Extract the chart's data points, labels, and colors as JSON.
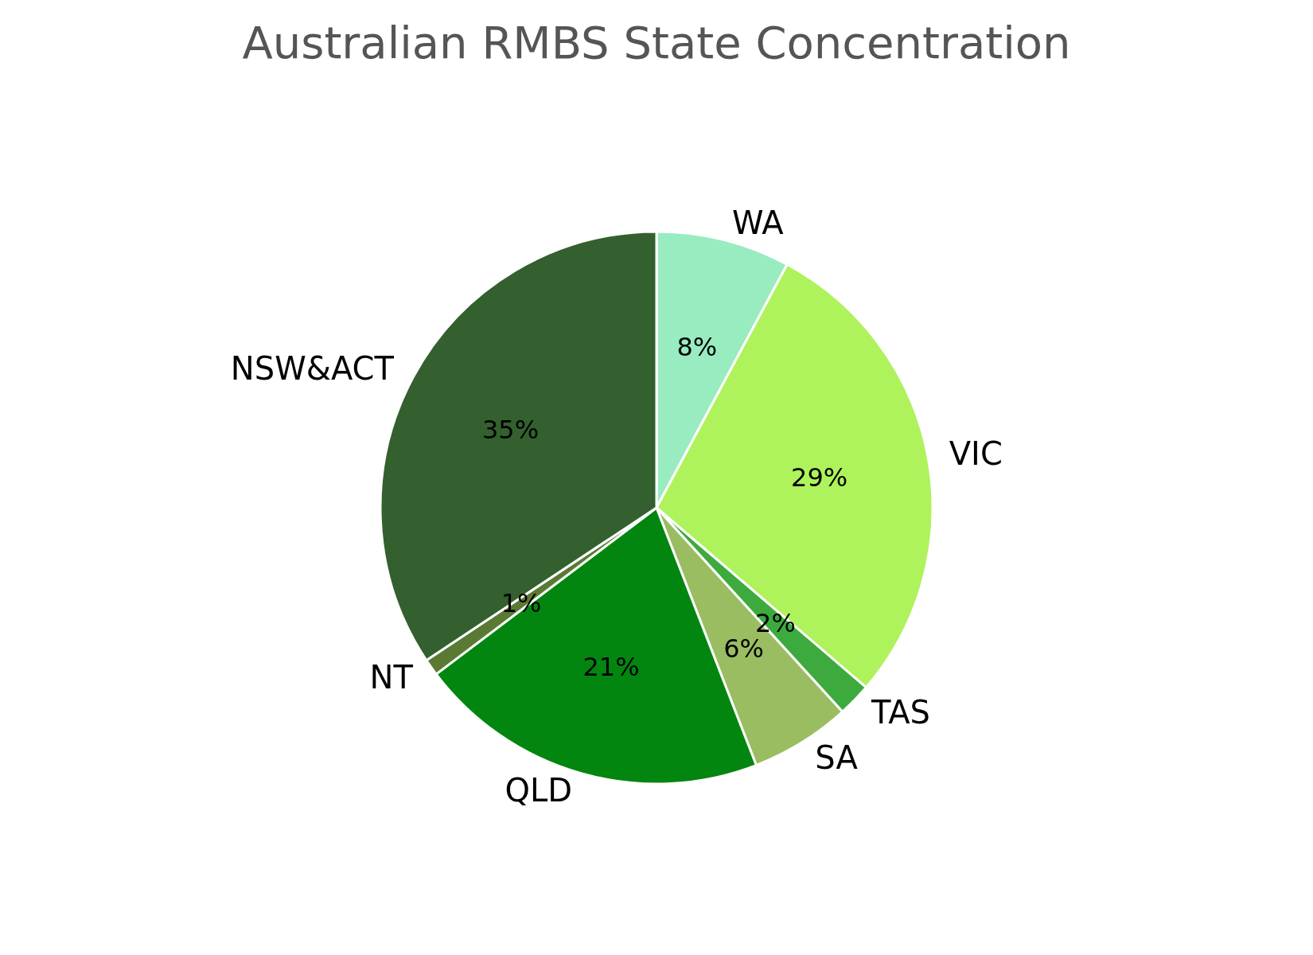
{
  "chart_data": {
    "type": "pie",
    "title": "Australian RMBS State Concentration",
    "categories": [
      "WA",
      "VIC",
      "TAS",
      "SA",
      "QLD",
      "NT",
      "NSW&ACT"
    ],
    "values": [
      8,
      29,
      2,
      6,
      21,
      1,
      35
    ],
    "value_labels": [
      "8%",
      "29%",
      "2%",
      "6%",
      "21%",
      "1%",
      "35%"
    ],
    "colors": [
      "#98ecc0",
      "#aef25c",
      "#3daa3d",
      "#9abd62",
      "#038610",
      "#5a7a34",
      "#33602e"
    ],
    "legend": false
  }
}
